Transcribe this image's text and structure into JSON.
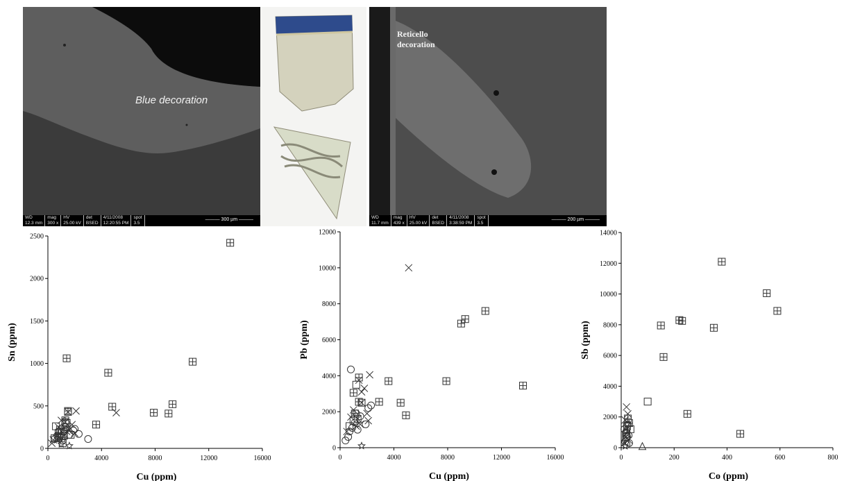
{
  "micrographs": [
    {
      "caption": "Blue decoration",
      "wd_label": "WD",
      "wd_value": "12.3 mm",
      "mag_label": "mag",
      "mag_value": "300 x",
      "hv_label": "HV",
      "hv_value": "25.00 kV",
      "det_label": "det",
      "det_value": "BSED",
      "date_value": "4/11/2008",
      "time_value": "12:20:55 PM",
      "spot_label": "spot",
      "spot_value": "3.5",
      "scale_label": "300 µm"
    },
    {
      "caption": "Reticello decoration",
      "wd_label": "WD",
      "wd_value": "11.7 mm",
      "mag_label": "mag",
      "mag_value": "439 x",
      "hv_label": "HV",
      "hv_value": "25.00 kV",
      "det_label": "det",
      "det_value": "BSED",
      "date_value": "4/11/2008",
      "time_value": "3:38:59 PM",
      "spot_label": "spot",
      "spot_value": "3.5",
      "scale_label": "200 µm"
    }
  ],
  "colors": {
    "sem_background": "#3b3b3b",
    "glass": "#d8d6c2",
    "blue_band": "#2e4b8c",
    "marker": "#333333"
  },
  "chart_data": [
    {
      "type": "scatter",
      "xlabel": "Cu (ppm)",
      "ylabel": "Sn (ppm)",
      "xlim": [
        0,
        16000
      ],
      "ylim": [
        0,
        2500
      ],
      "xticks": [
        0,
        4000,
        8000,
        12000,
        16000
      ],
      "yticks": [
        0,
        500,
        1000,
        1500,
        2000,
        2500
      ],
      "series": [
        {
          "marker": "boxplus",
          "points": [
            [
              13600,
              2420
            ],
            [
              1400,
              1060
            ],
            [
              10800,
              1020
            ],
            [
              4500,
              890
            ],
            [
              4800,
              490
            ],
            [
              9300,
              520
            ],
            [
              7900,
              420
            ],
            [
              9000,
              410
            ],
            [
              3600,
              280
            ],
            [
              1500,
              440
            ],
            [
              1300,
              330
            ],
            [
              1400,
              250
            ],
            [
              800,
              180
            ]
          ]
        },
        {
          "marker": "square",
          "points": [
            [
              600,
              260
            ],
            [
              1400,
              300
            ],
            [
              1200,
              150
            ],
            [
              1000,
              120
            ],
            [
              500,
              120
            ],
            [
              1100,
              60
            ],
            [
              1700,
              160
            ],
            [
              900,
              220
            ]
          ]
        },
        {
          "marker": "boxtimes",
          "points": [
            [
              1500,
              430
            ],
            [
              1300,
              310
            ],
            [
              1000,
              200
            ],
            [
              800,
              130
            ]
          ]
        },
        {
          "marker": "x",
          "points": [
            [
              2100,
              440
            ],
            [
              5100,
              420
            ],
            [
              1000,
              330
            ],
            [
              1400,
              200
            ],
            [
              1800,
              280
            ],
            [
              2000,
              180
            ],
            [
              1200,
              150
            ],
            [
              700,
              100
            ],
            [
              400,
              100
            ],
            [
              300,
              60
            ],
            [
              1600,
              220
            ],
            [
              800,
              250
            ]
          ]
        },
        {
          "marker": "circle",
          "points": [
            [
              2300,
              170
            ],
            [
              1900,
              210
            ],
            [
              3000,
              110
            ],
            [
              1600,
              160
            ],
            [
              1200,
              200
            ],
            [
              900,
              140
            ],
            [
              700,
              150
            ],
            [
              1100,
              90
            ],
            [
              500,
              110
            ],
            [
              2000,
              230
            ],
            [
              1300,
              250
            ],
            [
              800,
              200
            ]
          ]
        },
        {
          "marker": "star",
          "points": [
            [
              1600,
              30
            ],
            [
              1000,
              50
            ]
          ]
        }
      ]
    },
    {
      "type": "scatter",
      "xlabel": "Cu (ppm)",
      "ylabel": "Pb (ppm)",
      "xlim": [
        0,
        16000
      ],
      "ylim": [
        0,
        12000
      ],
      "xticks": [
        0,
        4000,
        8000,
        12000,
        16000
      ],
      "yticks": [
        0,
        2000,
        4000,
        6000,
        8000,
        10000,
        12000
      ],
      "series": [
        {
          "marker": "boxplus",
          "points": [
            [
              10800,
              7600
            ],
            [
              9300,
              7150
            ],
            [
              9000,
              6900
            ],
            [
              7900,
              3700
            ],
            [
              13600,
              3450
            ],
            [
              3600,
              3700
            ],
            [
              2900,
              2550
            ],
            [
              4500,
              2500
            ],
            [
              4900,
              1800
            ],
            [
              1400,
              3900
            ],
            [
              1000,
              3050
            ],
            [
              1400,
              2550
            ],
            [
              1100,
              1900
            ]
          ]
        },
        {
          "marker": "square",
          "points": [
            [
              1200,
              3500
            ],
            [
              700,
              1200
            ],
            [
              1000,
              1500
            ]
          ]
        },
        {
          "marker": "boxtimes",
          "points": [
            [
              1600,
              2500
            ],
            [
              1300,
              1600
            ]
          ]
        },
        {
          "marker": "x",
          "points": [
            [
              5100,
              10000
            ],
            [
              2200,
              4050
            ],
            [
              1400,
              3750
            ],
            [
              1800,
              3300
            ],
            [
              1600,
              3100
            ],
            [
              2000,
              1900
            ],
            [
              2100,
              1500
            ],
            [
              1200,
              1200
            ],
            [
              800,
              1700
            ],
            [
              500,
              900
            ],
            [
              1000,
              2100
            ],
            [
              1500,
              1300
            ]
          ]
        },
        {
          "marker": "circle",
          "points": [
            [
              800,
              4350
            ],
            [
              2300,
              2350
            ],
            [
              1500,
              1750
            ],
            [
              1900,
              1300
            ],
            [
              1100,
              1400
            ],
            [
              700,
              900
            ],
            [
              600,
              600
            ],
            [
              400,
              400
            ],
            [
              1200,
              1900
            ],
            [
              900,
              1100
            ],
            [
              2100,
              2200
            ],
            [
              1300,
              1000
            ]
          ]
        },
        {
          "marker": "star",
          "points": [
            [
              1600,
              100
            ]
          ]
        }
      ]
    },
    {
      "type": "scatter",
      "xlabel": "Co (ppm)",
      "ylabel": "Sb (ppm)",
      "xlim": [
        0,
        800
      ],
      "ylim": [
        0,
        14000
      ],
      "xticks": [
        0,
        200,
        400,
        600,
        800
      ],
      "yticks": [
        0,
        2000,
        4000,
        6000,
        8000,
        10000,
        12000,
        14000
      ],
      "series": [
        {
          "marker": "boxplus",
          "points": [
            [
              380,
              12100
            ],
            [
              550,
              10050
            ],
            [
              590,
              8900
            ],
            [
              220,
              8300
            ],
            [
              230,
              8250
            ],
            [
              150,
              7950
            ],
            [
              350,
              7800
            ],
            [
              160,
              5900
            ],
            [
              250,
              2200
            ],
            [
              450,
              900
            ],
            [
              25,
              1900
            ],
            [
              30,
              1600
            ]
          ]
        },
        {
          "marker": "square",
          "points": [
            [
              100,
              3000
            ],
            [
              35,
              1200
            ],
            [
              20,
              900
            ]
          ]
        },
        {
          "marker": "triangle",
          "points": [
            [
              80,
              100
            ]
          ]
        },
        {
          "marker": "boxtimes",
          "points": [
            [
              22,
              1400
            ],
            [
              18,
              700
            ]
          ]
        },
        {
          "marker": "x",
          "points": [
            [
              20,
              2650
            ],
            [
              25,
              2200
            ],
            [
              15,
              1800
            ],
            [
              18,
              1200
            ],
            [
              22,
              600
            ],
            [
              12,
              300
            ],
            [
              20,
              900
            ],
            [
              28,
              500
            ]
          ]
        },
        {
          "marker": "circle",
          "points": [
            [
              25,
              1500
            ],
            [
              18,
              1000
            ],
            [
              22,
              700
            ],
            [
              15,
              400
            ],
            [
              30,
              300
            ],
            [
              12,
              1200
            ],
            [
              20,
              200
            ],
            [
              28,
              800
            ]
          ]
        },
        {
          "marker": "star",
          "points": [
            [
              15,
              100
            ]
          ]
        }
      ]
    }
  ]
}
